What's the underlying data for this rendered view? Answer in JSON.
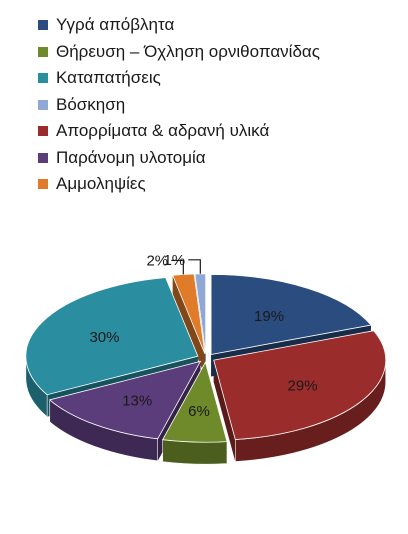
{
  "chart_data": {
    "type": "pie",
    "title": "",
    "legend_position": "top",
    "series": [
      {
        "categories": [
          "Υγρά απόβλητα",
          "Θήρευση – Όχληση ορνιθοπανίδας",
          "Καταπατήσεις",
          "Βόσκηση",
          "Απορρίματα & αδρανή υλικά",
          "Παράνομη υλοτομία",
          "Αμμοληψίες"
        ],
        "values": [
          19,
          6,
          30,
          1,
          29,
          13,
          2
        ],
        "labels": [
          "19%",
          "6%",
          "30%",
          "1%",
          "29%",
          "13%",
          "2%"
        ],
        "colors": [
          "#2B4C7E",
          "#6E8A2B",
          "#2A8DA0",
          "#8FA8D6",
          "#9B2C2C",
          "#5A3D7A",
          "#E07B2A"
        ]
      }
    ]
  }
}
